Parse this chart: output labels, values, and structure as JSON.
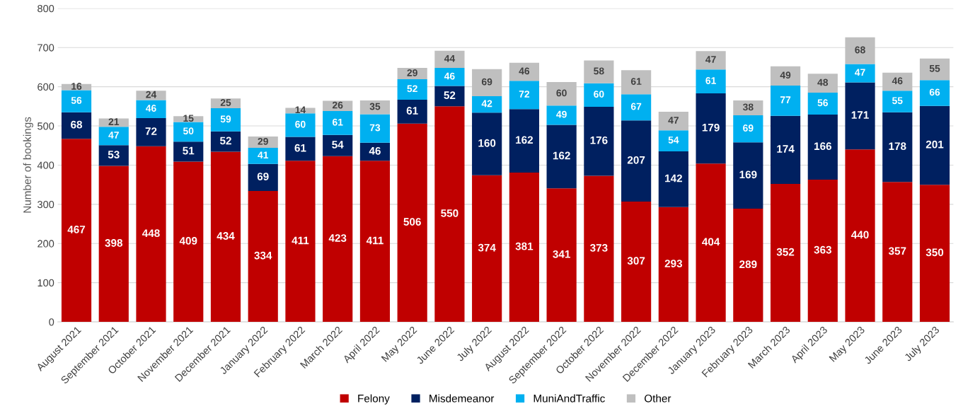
{
  "chart_data": {
    "type": "bar",
    "stacked": true,
    "ylabel": "Number of bookings",
    "categories": [
      "August 2021",
      "September 2021",
      "October 2021",
      "November 2021",
      "December 2021",
      "January 2022",
      "February 2022",
      "March 2022",
      "April 2022",
      "May 2022",
      "June 2022",
      "July 2022",
      "August 2022",
      "September 2022",
      "October 2022",
      "November 2022",
      "December 2022",
      "January 2023",
      "February 2023",
      "March 2023",
      "April 2023",
      "May 2023",
      "June 2023",
      "July 2023"
    ],
    "series": [
      {
        "name": "Felony",
        "color": "#c00000",
        "values": [
          467,
          398,
          448,
          409,
          434,
          334,
          411,
          423,
          411,
          506,
          550,
          374,
          381,
          341,
          373,
          307,
          293,
          404,
          289,
          352,
          363,
          440,
          357,
          350
        ]
      },
      {
        "name": "Misdemeanor",
        "color": "#002060",
        "values": [
          68,
          53,
          72,
          51,
          52,
          69,
          61,
          54,
          46,
          61,
          52,
          160,
          162,
          162,
          176,
          207,
          142,
          179,
          169,
          174,
          166,
          171,
          178,
          201
        ]
      },
      {
        "name": "MuniAndTraffic",
        "color": "#00b0f0",
        "values": [
          56,
          47,
          46,
          50,
          59,
          41,
          60,
          61,
          73,
          52,
          46,
          42,
          72,
          49,
          60,
          67,
          54,
          61,
          69,
          77,
          56,
          47,
          55,
          66
        ]
      },
      {
        "name": "Other",
        "color": "#bfbfbf",
        "values": [
          16,
          21,
          24,
          15,
          25,
          29,
          14,
          26,
          35,
          29,
          44,
          69,
          46,
          60,
          58,
          61,
          47,
          47,
          38,
          49,
          48,
          68,
          46,
          55
        ]
      }
    ],
    "ylim": [
      0,
      800
    ],
    "yticks": [
      0,
      100,
      200,
      300,
      400,
      500,
      600,
      700,
      800
    ],
    "grid": "y",
    "legend": "bottom",
    "data_labels": true
  }
}
